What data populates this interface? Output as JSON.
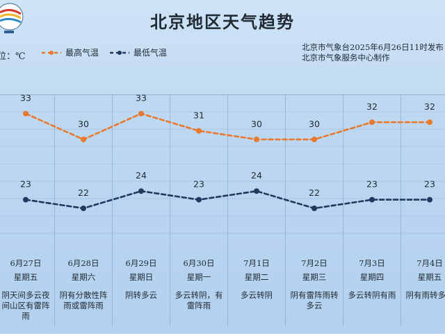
{
  "title": "北京地区天气趋势",
  "unit_label": "位：℃",
  "issuer": {
    "line1": "北京市气象台2025年6月26日11时发布",
    "line2": "北京市气象服务中心制作"
  },
  "colors": {
    "high": "#e8792e",
    "low": "#1f3a5c"
  },
  "chart_data": {
    "type": "line",
    "categories": [
      "6月27日",
      "6月28日",
      "6月29日",
      "6月30日",
      "7月1日",
      "7月2日",
      "7月3日",
      "7月4日"
    ],
    "weekdays": [
      "星期五",
      "星期六",
      "星期日",
      "星期一",
      "星期二",
      "星期三",
      "星期四",
      "星期五"
    ],
    "descriptions": [
      "阴天间多云夜间山区有雷阵雨",
      "阴有分散性阵雨或雷阵雨",
      "阴转多云",
      "多云转阴，有雷阵雨",
      "多云转阴",
      "阴有雷阵雨转多云",
      "多云转阴有雨",
      "阴有雨转多云"
    ],
    "series": [
      {
        "name": "最高气温",
        "values": [
          33,
          30,
          33,
          31,
          30,
          30,
          32,
          32
        ],
        "color": "#e8792e",
        "dash": true
      },
      {
        "name": "最低气温",
        "values": [
          23,
          22,
          24,
          23,
          24,
          22,
          23,
          23
        ],
        "color": "#1f3a5c",
        "dash": true
      }
    ],
    "ylim": [
      19,
      36
    ],
    "grid": true,
    "legend": "top-left",
    "xlabel": "",
    "ylabel": ""
  }
}
